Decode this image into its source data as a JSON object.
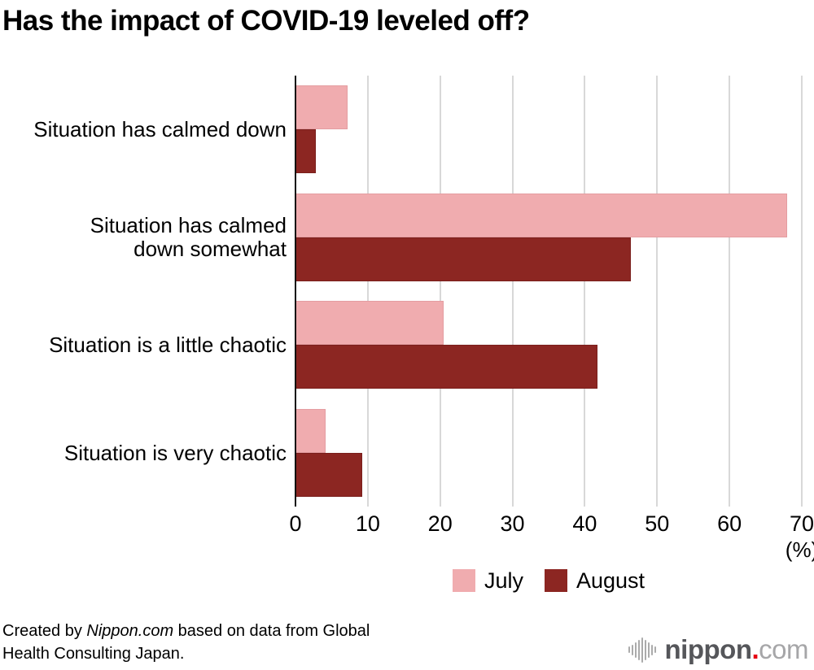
{
  "title": "Has the impact of COVID-19 leveled off?",
  "chart_data": {
    "type": "bar",
    "orientation": "horizontal",
    "title": "Has the impact of COVID-19 leveled off?",
    "categories": [
      "Situation has calmed down",
      "Situation has calmed\ndown somewhat",
      "Situation is a little chaotic",
      "Situation is very chaotic"
    ],
    "series": [
      {
        "name": "July",
        "color": "#f0acaf",
        "border_color": "#e49da1",
        "values": [
          7.2,
          68.0,
          20.5,
          4.2
        ]
      },
      {
        "name": "August",
        "color": "#8c2622",
        "border_color": "#7a1f1c",
        "values": [
          2.8,
          46.4,
          41.8,
          9.2
        ]
      }
    ],
    "xlim": [
      0,
      70
    ],
    "xticks": [
      "0",
      "10",
      "20",
      "30",
      "40",
      "50",
      "60",
      "70"
    ],
    "unit_label": "(%)",
    "grid": true,
    "legend_position": "bottom-center"
  },
  "legend": {
    "items": [
      {
        "label": "July",
        "color": "#f0acaf"
      },
      {
        "label": "August",
        "color": "#8c2622"
      }
    ]
  },
  "footer": {
    "prefix": "Created by ",
    "source": "Nippon.com",
    "suffix": " based on data from Global Health Consulting Japan."
  },
  "logo": {
    "brand": "nippon",
    "dot": ".",
    "tld": "com",
    "icon": "waveform-bars-icon"
  },
  "colors": {
    "background": "#ffffff",
    "axis": "#111111",
    "gridline": "#d8d8d8",
    "logo_brand": "#55565a",
    "logo_dot": "#e60012",
    "logo_tld": "#a6a6a8",
    "logo_icon": "#ababab"
  }
}
